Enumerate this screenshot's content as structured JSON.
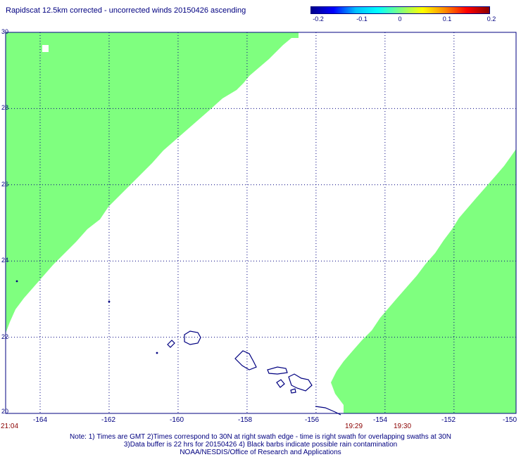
{
  "title": "Rapidscat 12.5km corrected - uncorrected winds 20150426 ascending",
  "colorbar": {
    "labels": [
      "-0.2",
      "-0.1",
      "0",
      "0.1",
      "0.2"
    ],
    "range": [
      -0.2,
      0.2
    ],
    "stops": [
      "#00008b",
      "#0000ff",
      "#00bfff",
      "#00ffff",
      "#7fff7f",
      "#ffff00",
      "#ff8c00",
      "#ff0000",
      "#8b0000"
    ]
  },
  "map": {
    "lon_range": [
      -165,
      -154
    ],
    "lat_range": [
      20,
      30
    ],
    "lon_ticks": [
      "-164",
      "-162",
      "-160",
      "-158",
      "-156",
      "-154",
      "-152",
      "-150"
    ],
    "lat_ticks": [
      "30",
      "28",
      "26",
      "24",
      "22",
      "20"
    ],
    "gridlines": true,
    "swath_color": "#7fff7f",
    "coast_color": "#000080"
  },
  "times": {
    "left": "21:04",
    "mid1": "19:29",
    "mid2": "19:30"
  },
  "notes": {
    "line1": "Note: 1) Times are GMT 2)Times correspond to 30N at right swath edge - time is right swath for overlapping swaths at 30N",
    "line2": "3)Data buffer is 22 hrs for 20150426 4) Black barbs indicate possible rain contamination",
    "line3": "NOAA/NESDIS/Office of Research and Applications"
  }
}
